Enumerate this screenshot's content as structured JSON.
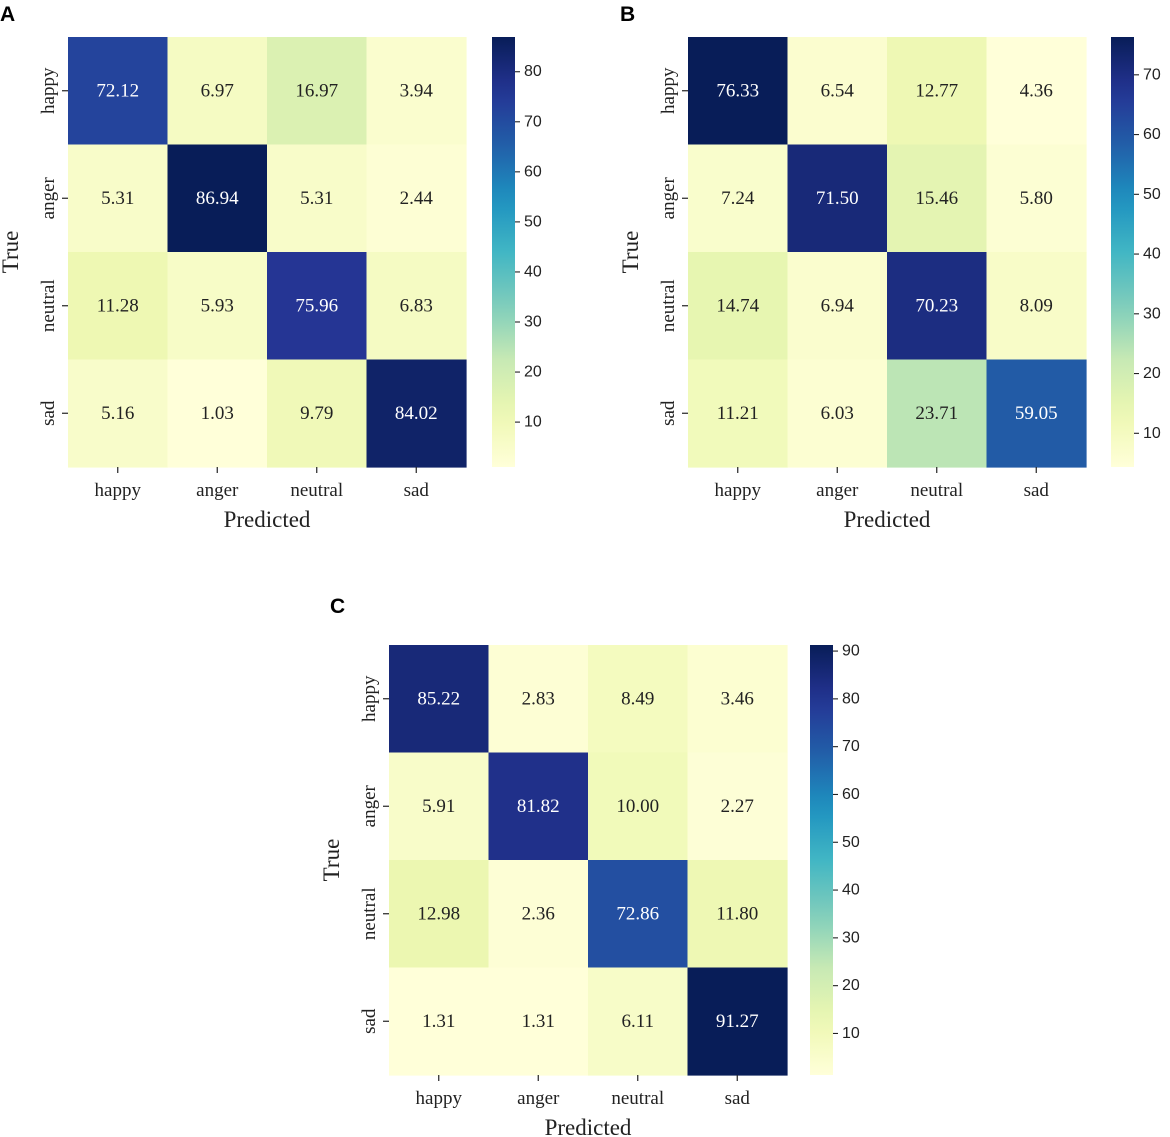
{
  "chart_data": [
    {
      "type": "heatmap",
      "panel_label": "A",
      "row_labels": [
        "happy",
        "anger",
        "neutral",
        "sad"
      ],
      "col_labels": [
        "happy",
        "anger",
        "neutral",
        "sad"
      ],
      "values": [
        [
          72.12,
          6.97,
          16.97,
          3.94
        ],
        [
          5.31,
          86.94,
          5.31,
          2.44
        ],
        [
          11.28,
          5.93,
          75.96,
          6.83
        ],
        [
          5.16,
          1.03,
          9.79,
          84.02
        ]
      ],
      "cell_text": [
        [
          "72.12",
          "6.97",
          "16.97",
          "3.94"
        ],
        [
          "5.31",
          "86.94",
          "5.31",
          "2.44"
        ],
        [
          "11.28",
          "5.93",
          "75.96",
          "6.83"
        ],
        [
          "5.16",
          "1.03",
          "9.79",
          "84.02"
        ]
      ],
      "xlabel": "Predicted",
      "ylabel": "True",
      "colorbar": {
        "vmin": 1.03,
        "vmax": 86.94,
        "ticks": [
          10,
          20,
          30,
          40,
          50,
          60,
          70,
          80
        ],
        "tick_labels": [
          "10",
          "20",
          "30",
          "40",
          "50",
          "60",
          "70",
          "80"
        ]
      }
    },
    {
      "type": "heatmap",
      "panel_label": "B",
      "row_labels": [
        "happy",
        "anger",
        "neutral",
        "sad"
      ],
      "col_labels": [
        "happy",
        "anger",
        "neutral",
        "sad"
      ],
      "values": [
        [
          76.33,
          6.54,
          12.77,
          4.36
        ],
        [
          7.24,
          71.5,
          15.46,
          5.8
        ],
        [
          14.74,
          6.94,
          70.23,
          8.09
        ],
        [
          11.21,
          6.03,
          23.71,
          59.05
        ]
      ],
      "cell_text": [
        [
          "76.33",
          "6.54",
          "12.77",
          "4.36"
        ],
        [
          "7.24",
          "71.50",
          "15.46",
          "5.80"
        ],
        [
          "14.74",
          "6.94",
          "70.23",
          "8.09"
        ],
        [
          "11.21",
          "6.03",
          "23.71",
          "59.05"
        ]
      ],
      "xlabel": "Predicted",
      "ylabel": "True",
      "colorbar": {
        "vmin": 4.36,
        "vmax": 76.33,
        "ticks": [
          10,
          20,
          30,
          40,
          50,
          60,
          70
        ],
        "tick_labels": [
          "10",
          "20",
          "30",
          "40",
          "50",
          "60",
          "70"
        ]
      }
    },
    {
      "type": "heatmap",
      "panel_label": "C",
      "row_labels": [
        "happy",
        "anger",
        "neutral",
        "sad"
      ],
      "col_labels": [
        "happy",
        "anger",
        "neutral",
        "sad"
      ],
      "values": [
        [
          85.22,
          2.83,
          8.49,
          3.46
        ],
        [
          5.91,
          81.82,
          10.0,
          2.27
        ],
        [
          12.98,
          2.36,
          72.86,
          11.8
        ],
        [
          1.31,
          1.31,
          6.11,
          91.27
        ]
      ],
      "cell_text": [
        [
          "85.22",
          "2.83",
          "8.49",
          "3.46"
        ],
        [
          "5.91",
          "81.82",
          "10.00",
          "2.27"
        ],
        [
          "12.98",
          "2.36",
          "72.86",
          "11.80"
        ],
        [
          "1.31",
          "1.31",
          "6.11",
          "91.27"
        ]
      ],
      "xlabel": "Predicted",
      "ylabel": "True",
      "colorbar": {
        "vmin": 1.31,
        "vmax": 91.27,
        "ticks": [
          10,
          20,
          30,
          40,
          50,
          60,
          70,
          80,
          90
        ],
        "tick_labels": [
          "10",
          "20",
          "30",
          "40",
          "50",
          "60",
          "70",
          "80",
          "90"
        ]
      }
    }
  ]
}
